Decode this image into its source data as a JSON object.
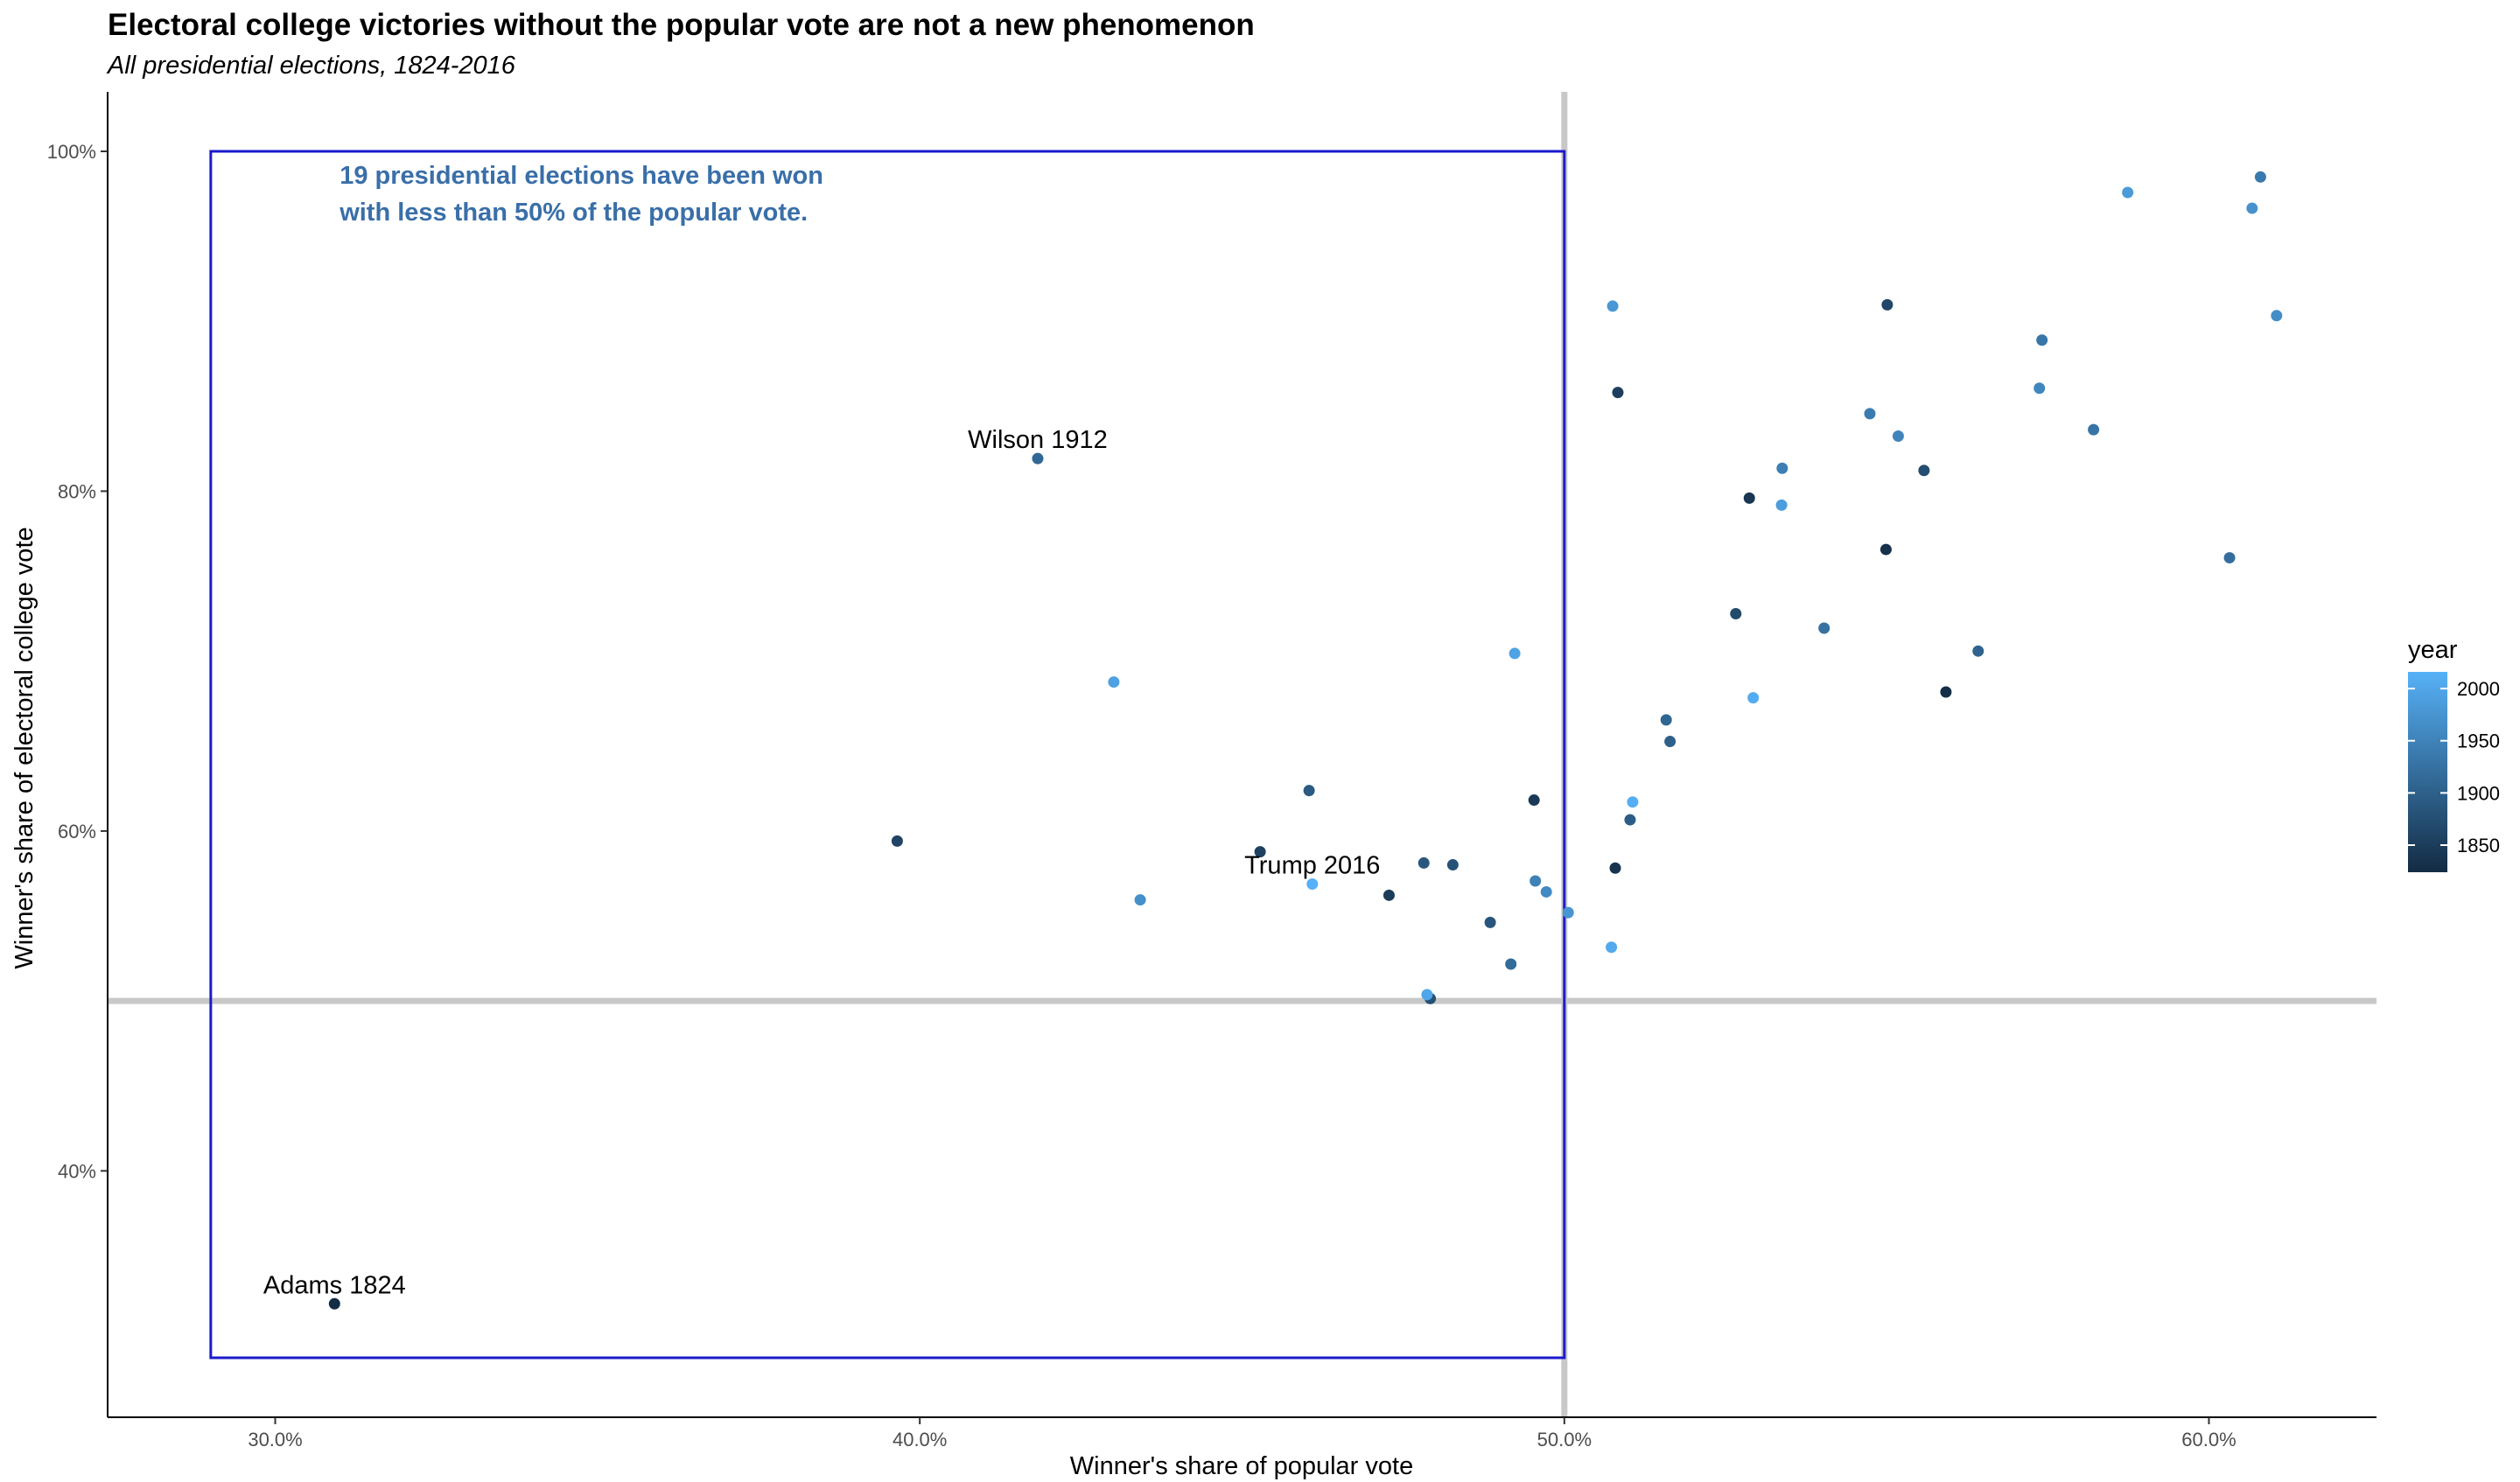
{
  "chart_data": {
    "type": "scatter",
    "title": "Electoral college victories without the popular vote are not a new phenomenon",
    "subtitle": "All presidential elections, 1824-2016",
    "xlabel": "Winner's share of popular vote",
    "ylabel": "Winner's share of electoral college vote",
    "xlim": [
      0.274,
      0.626
    ],
    "ylim": [
      0.255,
      1.035
    ],
    "x_ticks": [
      {
        "value": 0.3,
        "label": "30.0%"
      },
      {
        "value": 0.4,
        "label": "40.0%"
      },
      {
        "value": 0.5,
        "label": "50.0%"
      },
      {
        "value": 0.6,
        "label": "60.0%"
      }
    ],
    "y_ticks": [
      {
        "value": 0.4,
        "label": "40%"
      },
      {
        "value": 0.6,
        "label": "60%"
      },
      {
        "value": 0.8,
        "label": "80%"
      },
      {
        "value": 1.0,
        "label": "100%"
      }
    ],
    "reference_lines": {
      "x": 0.5,
      "y": 0.5,
      "color": "#c8c8c8"
    },
    "highlight_box": {
      "x": [
        0.29,
        0.5
      ],
      "y": [
        0.29,
        1.0
      ],
      "color": "#1a1acc"
    },
    "annotation": {
      "lines": [
        "19 presidential elections have been won",
        "with less than 50% of the popular vote."
      ],
      "color": "#3a6fa8",
      "x": 0.31,
      "y": 0.981
    },
    "color_scale": {
      "name": "year",
      "low": "#132b43",
      "high": "#56b1f7",
      "domain": [
        1824,
        2016
      ],
      "ticks": [
        1850,
        1900,
        1950,
        2000
      ]
    },
    "labels": [
      {
        "text": "Wilson 1912",
        "x": 0.4183,
        "y": 0.8192
      },
      {
        "text": "Trump 2016",
        "x": 0.4609,
        "y": 0.5688
      },
      {
        "text": "Adams 1824",
        "x": 0.3092,
        "y": 0.3218
      }
    ],
    "points": [
      {
        "year": 1824,
        "x": 0.3092,
        "y": 0.3218
      },
      {
        "year": 1828,
        "x": 0.5592,
        "y": 0.6818
      },
      {
        "year": 1832,
        "x": 0.5499,
        "y": 0.7657
      },
      {
        "year": 1836,
        "x": 0.5079,
        "y": 0.5782
      },
      {
        "year": 1840,
        "x": 0.5287,
        "y": 0.7959
      },
      {
        "year": 1844,
        "x": 0.4953,
        "y": 0.6182
      },
      {
        "year": 1848,
        "x": 0.4728,
        "y": 0.5622
      },
      {
        "year": 1852,
        "x": 0.5083,
        "y": 0.8581
      },
      {
        "year": 1856,
        "x": 0.4528,
        "y": 0.5878
      },
      {
        "year": 1860,
        "x": 0.3965,
        "y": 0.5941
      },
      {
        "year": 1864,
        "x": 0.5501,
        "y": 0.9097
      },
      {
        "year": 1868,
        "x": 0.5266,
        "y": 0.7279
      },
      {
        "year": 1872,
        "x": 0.5558,
        "y": 0.8122
      },
      {
        "year": 1876,
        "x": 0.4792,
        "y": 0.5014
      },
      {
        "year": 1880,
        "x": 0.4827,
        "y": 0.5801
      },
      {
        "year": 1884,
        "x": 0.4885,
        "y": 0.5462
      },
      {
        "year": 1888,
        "x": 0.4782,
        "y": 0.5812
      },
      {
        "year": 1892,
        "x": 0.4604,
        "y": 0.6238
      },
      {
        "year": 1896,
        "x": 0.5102,
        "y": 0.6066
      },
      {
        "year": 1900,
        "x": 0.5164,
        "y": 0.6527
      },
      {
        "year": 1904,
        "x": 0.5642,
        "y": 0.7059
      },
      {
        "year": 1908,
        "x": 0.5158,
        "y": 0.6654
      },
      {
        "year": 1912,
        "x": 0.4183,
        "y": 0.8192
      },
      {
        "year": 1916,
        "x": 0.4917,
        "y": 0.5217
      },
      {
        "year": 1920,
        "x": 0.6032,
        "y": 0.7608
      },
      {
        "year": 1924,
        "x": 0.5403,
        "y": 0.7194
      },
      {
        "year": 1928,
        "x": 0.5821,
        "y": 0.8362
      },
      {
        "year": 1932,
        "x": 0.5741,
        "y": 0.8889
      },
      {
        "year": 1936,
        "x": 0.608,
        "y": 0.9849
      },
      {
        "year": 1940,
        "x": 0.5474,
        "y": 0.8456
      },
      {
        "year": 1944,
        "x": 0.5338,
        "y": 0.8135
      },
      {
        "year": 1948,
        "x": 0.4955,
        "y": 0.5706
      },
      {
        "year": 1952,
        "x": 0.5518,
        "y": 0.8324
      },
      {
        "year": 1956,
        "x": 0.5737,
        "y": 0.8606
      },
      {
        "year": 1960,
        "x": 0.4972,
        "y": 0.5642
      },
      {
        "year": 1964,
        "x": 0.6105,
        "y": 0.9033
      },
      {
        "year": 1968,
        "x": 0.4342,
        "y": 0.5595
      },
      {
        "year": 1972,
        "x": 0.6067,
        "y": 0.9665
      },
      {
        "year": 1976,
        "x": 0.5006,
        "y": 0.552
      },
      {
        "year": 1980,
        "x": 0.5075,
        "y": 0.9089
      },
      {
        "year": 1984,
        "x": 0.5874,
        "y": 0.9758
      },
      {
        "year": 1988,
        "x": 0.5337,
        "y": 0.7918
      },
      {
        "year": 1992,
        "x": 0.4301,
        "y": 0.6877
      },
      {
        "year": 1996,
        "x": 0.4923,
        "y": 0.7045
      },
      {
        "year": 2000,
        "x": 0.4787,
        "y": 0.5037
      },
      {
        "year": 2004,
        "x": 0.5073,
        "y": 0.5316
      },
      {
        "year": 2008,
        "x": 0.5293,
        "y": 0.6784
      },
      {
        "year": 2012,
        "x": 0.5106,
        "y": 0.6171
      },
      {
        "year": 2016,
        "x": 0.4609,
        "y": 0.5688
      }
    ]
  }
}
